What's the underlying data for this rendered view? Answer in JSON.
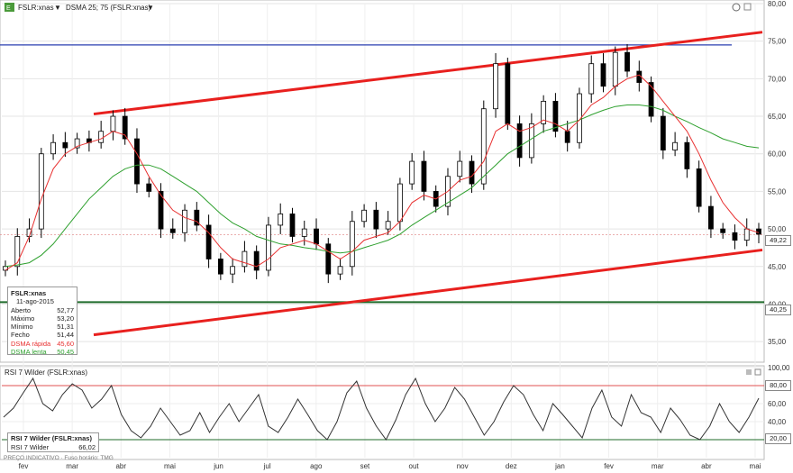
{
  "header": {
    "symbol_label": "FSLR:xnas",
    "indicator_label": "DSMA 25; 75 (FSLR:xnas)",
    "rsi_label": "RSI 7 Wilder (FSLR:xnas)"
  },
  "colors": {
    "candles": "#000000",
    "dsma_fast": "#e83030",
    "dsma_slow": "#2ea02e",
    "trendline": "#e8201e",
    "resistance": "#2a3fb0",
    "support": "#1f6b2a",
    "rsi_line": "#333333"
  },
  "info_box": {
    "title": "FSLR:xnas",
    "date": "11-ago-2015",
    "rows": [
      {
        "label": "Aberto",
        "value": "52,77",
        "color": "#222222"
      },
      {
        "label": "Máximo",
        "value": "53,20",
        "color": "#222222"
      },
      {
        "label": "Mínimo",
        "value": "51,31",
        "color": "#222222"
      },
      {
        "label": "Fecho",
        "value": "51,44",
        "color": "#222222"
      },
      {
        "label": "DSMA rápida",
        "value": "45,60",
        "color": "#e83030"
      },
      {
        "label": "DSMA lenta",
        "value": "50,45",
        "color": "#2ea02e"
      }
    ]
  },
  "rsi_box": {
    "title": "RSI 7 Wilder (FSLR:xnas)",
    "label": "RSI 7 Wilder",
    "value": "66,02"
  },
  "footer_note": "PREÇO INDICATIVO · Fuso horário: TMG",
  "price_tags": {
    "last": "49,22",
    "support": "40,25"
  },
  "rsi_tags": {
    "upper": "80,00",
    "lower": "20,00"
  },
  "chart_data": [
    {
      "type": "candlestick",
      "x_ticks": [
        "fev",
        "mar",
        "abr",
        "mai",
        "jun",
        "jul",
        "ago",
        "set",
        "out",
        "nov",
        "dez",
        "jan",
        "fev",
        "mar",
        "abr",
        "mai"
      ],
      "y_ticks": [
        "35,00",
        "40,00",
        "45,00",
        "50,00",
        "55,00",
        "60,00",
        "65,00",
        "70,00",
        "75,00",
        "80,00"
      ],
      "ylim": [
        32.5,
        80
      ],
      "close_approx": [
        45.0,
        49.0,
        50.0,
        60.0,
        61.5,
        60.8,
        62.0,
        61.5,
        63.0,
        65.0,
        62.0,
        56.0,
        55.0,
        50.0,
        49.5,
        52.5,
        50.5,
        46.0,
        44.0,
        45.0,
        47.0,
        44.5,
        50.5,
        52.0,
        49.0,
        50.0,
        48.0,
        44.0,
        45.0,
        51.0,
        52.5,
        50.0,
        51.0,
        56.0,
        59.0,
        55.0,
        53.0,
        57.0,
        59.0,
        56.0,
        66.0,
        72.0,
        64.0,
        59.5,
        64.0,
        67.0,
        63.0,
        61.5,
        68.0,
        72.0,
        69.0,
        73.5,
        71.0,
        69.5,
        65.0,
        60.5,
        61.5,
        58.0,
        53.0,
        50.0,
        49.5,
        48.5,
        50.0,
        49.3
      ],
      "dsma_fast_approx": [
        44.5,
        45.5,
        49.0,
        54.0,
        58.0,
        60.0,
        61.0,
        61.5,
        62.0,
        63.0,
        62.5,
        60.0,
        57.0,
        54.5,
        52.5,
        51.5,
        51.0,
        49.5,
        47.5,
        46.0,
        45.5,
        45.0,
        46.0,
        47.5,
        48.0,
        48.5,
        48.0,
        47.0,
        46.0,
        47.0,
        48.5,
        49.0,
        49.5,
        51.0,
        53.5,
        54.5,
        54.0,
        55.0,
        56.5,
        57.0,
        59.0,
        63.0,
        64.0,
        63.0,
        63.5,
        64.5,
        64.0,
        63.0,
        64.5,
        66.5,
        67.5,
        69.0,
        70.0,
        70.5,
        69.0,
        67.0,
        65.0,
        63.0,
        60.0,
        56.5,
        53.5,
        51.5,
        50.0,
        49.5
      ],
      "dsma_slow_approx": [
        45.0,
        45.2,
        45.5,
        46.5,
        48.0,
        50.0,
        52.0,
        54.0,
        55.5,
        57.0,
        58.0,
        58.5,
        58.5,
        58.0,
        57.0,
        56.0,
        55.0,
        53.5,
        52.0,
        50.8,
        50.0,
        49.0,
        48.5,
        48.0,
        47.8,
        47.5,
        47.3,
        47.0,
        46.8,
        47.0,
        47.5,
        48.0,
        48.5,
        49.3,
        50.5,
        51.5,
        52.5,
        53.5,
        54.5,
        55.5,
        57.0,
        58.5,
        60.0,
        61.0,
        62.0,
        63.0,
        63.5,
        64.0,
        64.5,
        65.2,
        65.8,
        66.3,
        66.5,
        66.5,
        66.3,
        65.8,
        65.0,
        64.3,
        63.5,
        62.8,
        62.0,
        61.5,
        61.0,
        60.8
      ],
      "resistance_level": 74.5,
      "support_level": 40.25,
      "last_price": 49.22
    },
    {
      "type": "line",
      "name": "RSI 7 Wilder",
      "y_ticks": [
        "20,00",
        "40,00",
        "60,00",
        "80,00",
        "100,00"
      ],
      "ylim": [
        0,
        100
      ],
      "reference_lines": [
        80,
        20
      ],
      "values": [
        45,
        55,
        72,
        88,
        60,
        52,
        70,
        82,
        75,
        55,
        65,
        80,
        48,
        30,
        22,
        35,
        55,
        40,
        25,
        30,
        50,
        28,
        45,
        60,
        40,
        55,
        70,
        35,
        28,
        45,
        65,
        48,
        30,
        20,
        40,
        72,
        85,
        55,
        35,
        20,
        42,
        70,
        88,
        60,
        40,
        55,
        78,
        65,
        45,
        25,
        40,
        62,
        80,
        70,
        48,
        30,
        60,
        48,
        35,
        22,
        55,
        75,
        45,
        35,
        70,
        50,
        45,
        28,
        55,
        42,
        25,
        20,
        35,
        60,
        40,
        28,
        45,
        66
      ]
    }
  ]
}
